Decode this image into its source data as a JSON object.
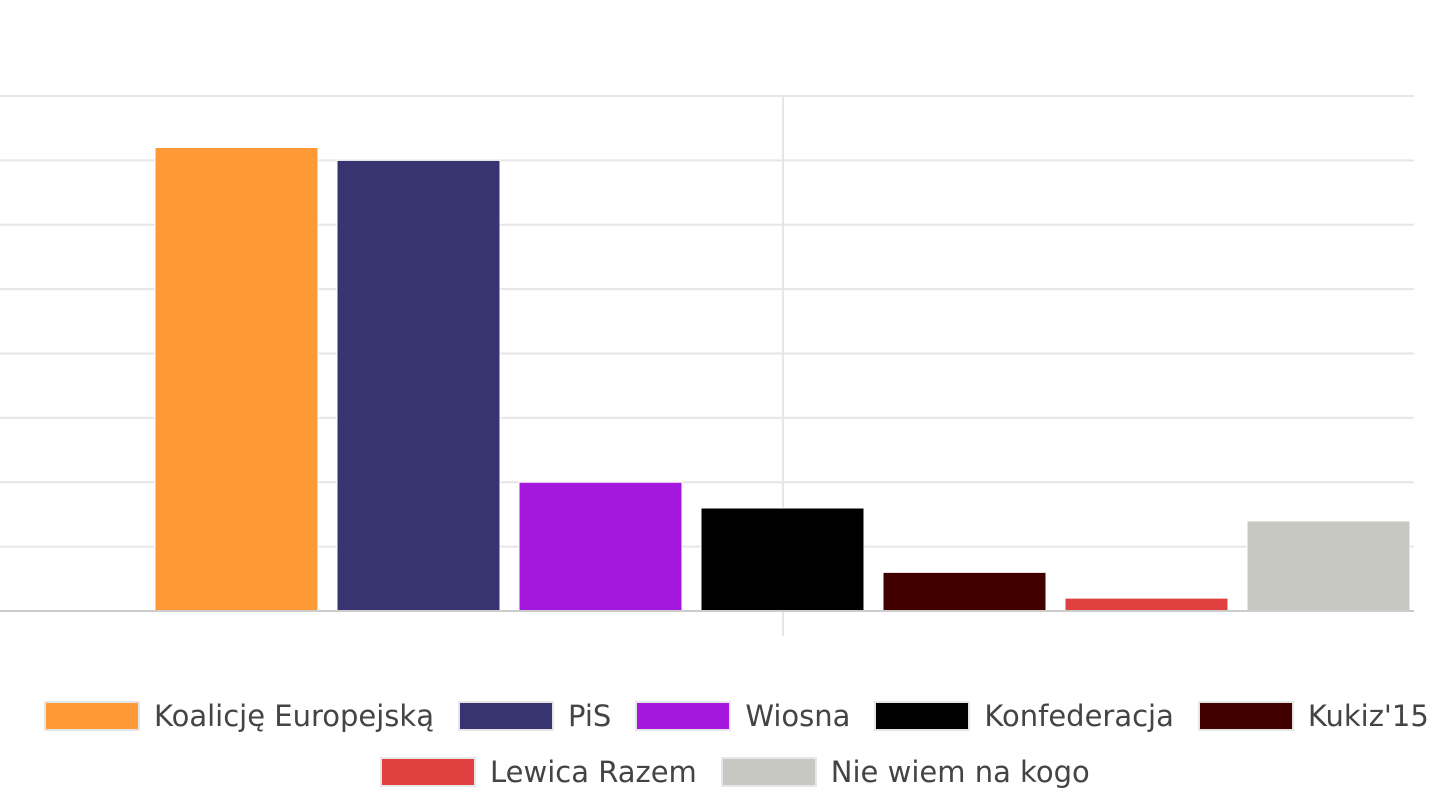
{
  "colors": {
    "grid": "#e6e6e6",
    "axis": "#cccccc"
  },
  "chart_data": {
    "type": "bar",
    "categories": [
      "Koalicję Europejską",
      "PiS",
      "Wiosna",
      "Konfederacja",
      "Kukiz'15",
      "Lewica Razem",
      "Nie wiem na kogo"
    ],
    "values": [
      36,
      35,
      10,
      8,
      3,
      1,
      7
    ],
    "ylim": [
      0,
      40
    ],
    "grid": true,
    "legend_position": "bottom",
    "series": [
      {
        "name": "Koalicję Europejską",
        "color": "#fd9937"
      },
      {
        "name": "PiS",
        "color": "#383471"
      },
      {
        "name": "Wiosna",
        "color": "#a418de"
      },
      {
        "name": "Konfederacja",
        "color": "#000000"
      },
      {
        "name": "Kukiz'15",
        "color": "#400000"
      },
      {
        "name": "Lewica Razem",
        "color": "#e04040"
      },
      {
        "name": "Nie wiem na kogo",
        "color": "#c8c8c3"
      }
    ]
  }
}
